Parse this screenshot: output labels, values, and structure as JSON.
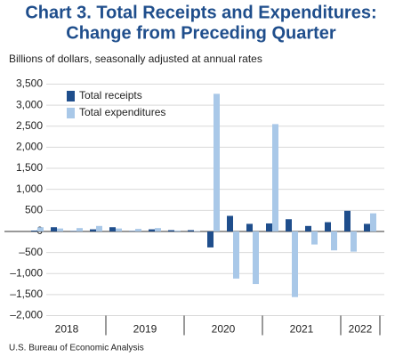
{
  "chart_data": {
    "type": "bar",
    "title": "Chart 3. Total Receipts and Expenditures:",
    "subtitle": "Change from Preceding Quarter",
    "y_label": "Billions of dollars, seasonally adjusted at annual rates",
    "source": "U.S. Bureau of Economic Analysis",
    "categories": [
      "2018",
      null,
      null,
      null,
      "2019",
      null,
      null,
      null,
      "2020",
      null,
      null,
      null,
      "2021",
      null,
      null,
      null,
      "2022",
      null
    ],
    "series": [
      {
        "name": "Total receipts",
        "color": "#1f4e8c",
        "values": [
          20,
          100,
          10,
          50,
          100,
          10,
          50,
          30,
          30,
          -380,
          370,
          180,
          190,
          290,
          130,
          220,
          490,
          180
        ]
      },
      {
        "name": "Total expenditures",
        "color": "#a9c8e8",
        "values": [
          100,
          70,
          80,
          130,
          70,
          60,
          80,
          20,
          10,
          3270,
          -1120,
          -1250,
          2550,
          -1560,
          -310,
          -450,
          -480,
          430
        ]
      }
    ],
    "ylim": [
      -2000,
      3500
    ],
    "yticks": [
      {
        "value": -2000,
        "label": "–2,000"
      },
      {
        "value": -1500,
        "label": "–1,500"
      },
      {
        "value": -1000,
        "label": "–1,000"
      },
      {
        "value": -500,
        "label": "–500"
      },
      0,
      500,
      {
        "value": 1000,
        "label": "1,000"
      },
      {
        "value": 1500,
        "label": "1,500"
      },
      {
        "value": 2000,
        "label": "2,000"
      },
      {
        "value": 2500,
        "label": "2,500"
      },
      {
        "value": 3000,
        "label": "3,000"
      },
      {
        "value": 3500,
        "label": "3,500"
      }
    ],
    "grid": true,
    "legend": "upper left"
  }
}
